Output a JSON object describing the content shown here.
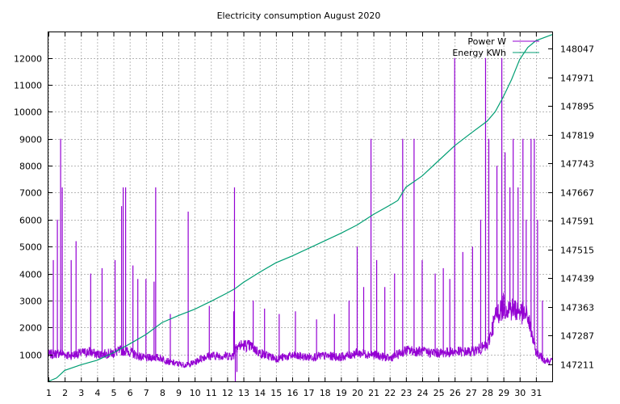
{
  "chart_data": {
    "type": "line",
    "title": "Electricity consumption August 2020",
    "x_ticks": [
      "1",
      "2",
      "3",
      "4",
      "5",
      "6",
      "7",
      "8",
      "9",
      "10",
      "11",
      "12",
      "13",
      "14",
      "15",
      "16",
      "17",
      "18",
      "19",
      "20",
      "21",
      "22",
      "23",
      "24",
      "25",
      "26",
      "27",
      "28",
      "29",
      "30",
      "31"
    ],
    "xlim": [
      1,
      32
    ],
    "y_left": {
      "ticks": [
        1000,
        2000,
        3000,
        4000,
        5000,
        6000,
        7000,
        8000,
        9000,
        10000,
        11000,
        12000
      ],
      "ylim": [
        0,
        12950
      ]
    },
    "y_right": {
      "ticks": [
        147211,
        147287,
        147363,
        147439,
        147515,
        147591,
        147667,
        147743,
        147819,
        147895,
        147971,
        148047
      ],
      "ylim": [
        147166,
        148090
      ]
    },
    "grid": true,
    "legend_position": "top-right",
    "series": [
      {
        "name": "Power W",
        "axis": "left",
        "color": "#9400d3",
        "baseline_points": [
          [
            1,
            1000
          ],
          [
            1.8,
            1050
          ],
          [
            2.3,
            950
          ],
          [
            3,
            1050
          ],
          [
            3.5,
            1100
          ],
          [
            4,
            1000
          ],
          [
            5,
            1050
          ],
          [
            5.5,
            1150
          ],
          [
            6,
            1100
          ],
          [
            6.5,
            950
          ],
          [
            7,
            850
          ],
          [
            7.5,
            900
          ],
          [
            8,
            850
          ],
          [
            8.5,
            700
          ],
          [
            9,
            650
          ],
          [
            9.5,
            600
          ],
          [
            10,
            700
          ],
          [
            10.5,
            900
          ],
          [
            11,
            950
          ],
          [
            12,
            950
          ],
          [
            12.4,
            950
          ],
          [
            12.5,
            1300
          ],
          [
            13,
            1350
          ],
          [
            13.5,
            1300
          ],
          [
            14,
            1050
          ],
          [
            15,
            850
          ],
          [
            16,
            950
          ],
          [
            17,
            900
          ],
          [
            18,
            950
          ],
          [
            19,
            900
          ],
          [
            20,
            1050
          ],
          [
            21,
            1000
          ],
          [
            22,
            850
          ],
          [
            23,
            1150
          ],
          [
            24,
            1100
          ],
          [
            25,
            1050
          ],
          [
            26,
            1100
          ],
          [
            27,
            1100
          ],
          [
            28,
            1300
          ],
          [
            28.5,
            2400
          ],
          [
            29,
            2800
          ],
          [
            29.5,
            2700
          ],
          [
            30,
            2600
          ],
          [
            30.5,
            2400
          ],
          [
            31,
            1100
          ],
          [
            31.5,
            800
          ],
          [
            32,
            750
          ]
        ],
        "peak_points": [
          [
            1.3,
            4500
          ],
          [
            1.55,
            6000
          ],
          [
            1.75,
            9000
          ],
          [
            1.85,
            7200
          ],
          [
            2.4,
            4500
          ],
          [
            2.7,
            5200
          ],
          [
            3.6,
            4000
          ],
          [
            4.3,
            4200
          ],
          [
            5.1,
            4500
          ],
          [
            5.5,
            6500
          ],
          [
            5.6,
            7200
          ],
          [
            5.75,
            7200
          ],
          [
            6.2,
            4300
          ],
          [
            6.5,
            3800
          ],
          [
            7,
            3800
          ],
          [
            7.5,
            3700
          ],
          [
            7.6,
            7200
          ],
          [
            8.5,
            2500
          ],
          [
            9.6,
            6300
          ],
          [
            10.9,
            2800
          ],
          [
            12.45,
            7200
          ],
          [
            12.4,
            2600
          ],
          [
            13.6,
            3000
          ],
          [
            14.3,
            2700
          ],
          [
            15.2,
            2500
          ],
          [
            16.2,
            2600
          ],
          [
            17.5,
            2300
          ],
          [
            18.6,
            2500
          ],
          [
            19.5,
            3000
          ],
          [
            20,
            5000
          ],
          [
            20.4,
            3500
          ],
          [
            20.85,
            9000
          ],
          [
            21.2,
            4500
          ],
          [
            21.7,
            3500
          ],
          [
            22.3,
            4000
          ],
          [
            22.8,
            9000
          ],
          [
            23.5,
            9000
          ],
          [
            24,
            4500
          ],
          [
            24.8,
            4000
          ],
          [
            25.3,
            4200
          ],
          [
            25.7,
            3800
          ],
          [
            26,
            12000
          ],
          [
            26.5,
            4800
          ],
          [
            27.1,
            5000
          ],
          [
            27.6,
            6000
          ],
          [
            27.9,
            12000
          ],
          [
            28.1,
            9000
          ],
          [
            28.6,
            8000
          ],
          [
            28.9,
            12000
          ],
          [
            29.1,
            8500
          ],
          [
            29.4,
            7200
          ],
          [
            29.6,
            9000
          ],
          [
            29.9,
            7200
          ],
          [
            30.2,
            9000
          ],
          [
            30.4,
            6000
          ],
          [
            30.7,
            9000
          ],
          [
            30.9,
            9000
          ],
          [
            31.1,
            6000
          ],
          [
            31.4,
            3000
          ]
        ],
        "dip_points": [
          [
            12.5,
            0
          ],
          [
            12.6,
            350
          ]
        ]
      },
      {
        "name": "Energy KWh",
        "axis": "right",
        "color": "#009e73",
        "points": [
          [
            1,
            147166
          ],
          [
            1.5,
            147175
          ],
          [
            2,
            147195
          ],
          [
            3,
            147210
          ],
          [
            4,
            147222
          ],
          [
            5,
            147242
          ],
          [
            6,
            147265
          ],
          [
            7,
            147290
          ],
          [
            8,
            147322
          ],
          [
            9,
            147340
          ],
          [
            10,
            147357
          ],
          [
            11,
            147378
          ],
          [
            12,
            147400
          ],
          [
            12.5,
            147412
          ],
          [
            13,
            147428
          ],
          [
            14,
            147455
          ],
          [
            15,
            147480
          ],
          [
            16,
            147498
          ],
          [
            17,
            147518
          ],
          [
            18,
            147538
          ],
          [
            19,
            147558
          ],
          [
            20,
            147580
          ],
          [
            21,
            147608
          ],
          [
            22,
            147632
          ],
          [
            22.5,
            147645
          ],
          [
            23,
            147680
          ],
          [
            24,
            147710
          ],
          [
            25,
            147750
          ],
          [
            26,
            147790
          ],
          [
            27,
            147823
          ],
          [
            28,
            147855
          ],
          [
            28.5,
            147880
          ],
          [
            29,
            147920
          ],
          [
            29.5,
            147965
          ],
          [
            30,
            148018
          ],
          [
            30.5,
            148050
          ],
          [
            31,
            148068
          ],
          [
            32,
            148084
          ]
        ]
      }
    ]
  }
}
